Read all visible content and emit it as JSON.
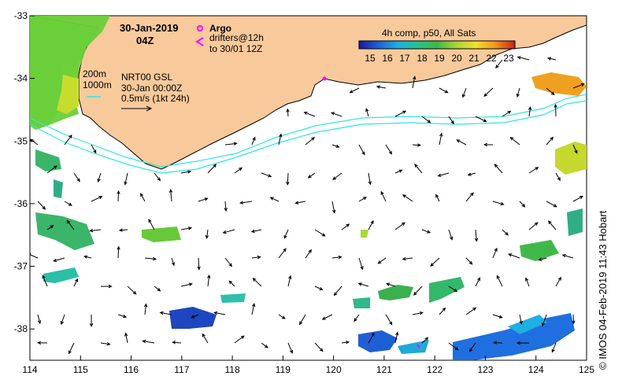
{
  "map": {
    "title_date": "30-Jan-2019",
    "title_time": "04Z",
    "argo_label": "Argo",
    "drifters_label": "drifters@12h",
    "drifters_to": "to 30/01 12Z",
    "isobath_1": "200m",
    "isobath_2": "1000m",
    "nrt_label": "NRT00 GSL",
    "nrt_date": "30-Jan 00:00Z",
    "speed_scale": "0.5m/s (1kt 24h)",
    "colorbar_title": "4h comp, p50, All Sats",
    "colorbar_ticks": [
      "15",
      "16",
      "17",
      "18",
      "19",
      "20",
      "21",
      "22",
      "23"
    ],
    "credit": "© IMOS 04-Feb-2019 11:43 Hobart",
    "x_ticks": [
      "114",
      "115",
      "116",
      "117",
      "118",
      "119",
      "120",
      "121",
      "122",
      "123",
      "124",
      "125"
    ],
    "y_ticks": [
      "-33",
      "-34",
      "-35",
      "-36",
      "-37",
      "-38"
    ],
    "lon_range": [
      114,
      125
    ],
    "lat_range": [
      -38.5,
      -33
    ],
    "colors": {
      "land": "#f8c99b",
      "coast": "#000000",
      "ocean": "#ffffff",
      "current_line": "#2ee6e6",
      "argo": "#ff00ff",
      "drifter": "#ff00ff"
    }
  }
}
